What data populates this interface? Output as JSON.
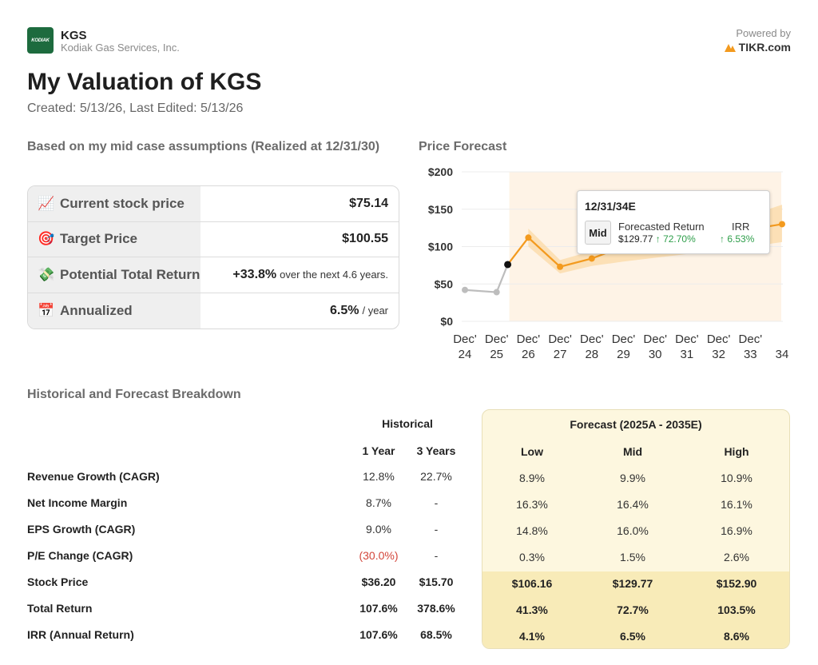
{
  "header": {
    "logo_text": "KODIAK",
    "ticker": "KGS",
    "company": "Kodiak Gas Services, Inc.",
    "powered_by": "Powered by",
    "brand": "TIKR.com",
    "title": "My Valuation of KGS",
    "subtitle": "Created: 5/13/26, Last Edited: 5/13/26"
  },
  "summary": {
    "section_title": "Based on my mid case assumptions (Realized at 12/31/30)",
    "rows": [
      {
        "icon": "chart-up-icon",
        "emoji": "📈",
        "label": "Current stock price",
        "value": "$75.14",
        "suffix": ""
      },
      {
        "icon": "target-icon",
        "emoji": "🎯",
        "label": "Target Price",
        "value": "$100.55",
        "suffix": ""
      },
      {
        "icon": "money-icon",
        "emoji": "💸",
        "label": "Potential Total Return",
        "value": "+33.8%",
        "suffix": "over the next 4.6 years."
      },
      {
        "icon": "calendar-icon",
        "emoji": "📅",
        "label": "Annualized",
        "value": "6.5%",
        "suffix": "/ year"
      }
    ]
  },
  "forecast_chart": {
    "section_title": "Price Forecast",
    "tooltip": {
      "date": "12/31/34E",
      "badge": "Mid",
      "col1_header": "Forecasted Return",
      "col2_header": "IRR",
      "price": "$129.77",
      "return": "↑ 72.70%",
      "irr": "↑ 6.53%"
    }
  },
  "chart_data": {
    "type": "line",
    "x": [
      "Dec' 24",
      "Dec' 25",
      "Dec' 26",
      "Dec' 27",
      "Dec' 28",
      "Dec' 29",
      "Dec' 30",
      "Dec' 31",
      "Dec' 32",
      "Dec' 33",
      "34"
    ],
    "x_tick_top": [
      "Dec'",
      "Dec'",
      "Dec'",
      "Dec'",
      "Dec'",
      "Dec'",
      "Dec'",
      "Dec'",
      "Dec'",
      "Dec'",
      ""
    ],
    "x_tick_bottom": [
      "24",
      "25",
      "26",
      "27",
      "28",
      "29",
      "30",
      "31",
      "32",
      "33",
      "34"
    ],
    "y_ticks": [
      "$200",
      "$150",
      "$100",
      "$50",
      "$0"
    ],
    "y_tick_values": [
      200,
      150,
      100,
      50,
      0
    ],
    "ylim": [
      0,
      200
    ],
    "series": [
      {
        "kind": "historical",
        "color": "#bdbdbd",
        "x": [
          0,
          1,
          1.35
        ],
        "y": [
          42,
          39,
          76
        ]
      },
      {
        "kind": "forecast",
        "color": "#f39a1e",
        "x": [
          1.35,
          2,
          3,
          4,
          4.5,
          10
        ],
        "y": [
          76,
          112,
          73,
          84,
          92,
          130
        ]
      }
    ],
    "band": {
      "x": [
        2,
        3,
        4,
        5,
        6,
        7,
        8,
        9,
        10
      ],
      "low": [
        100,
        64,
        74,
        80,
        85,
        90,
        95,
        100,
        106
      ],
      "high": [
        124,
        82,
        94,
        102,
        110,
        120,
        130,
        142,
        156
      ]
    },
    "current_point": {
      "x": 1.35,
      "y": 76
    },
    "forecast_region_start": 1.4,
    "grid": true,
    "colors": {
      "historical": "#bdbdbd",
      "forecast": "#f39a1e",
      "band": "#fbd9a6",
      "region": "#fef3e6",
      "current": "#111111"
    }
  },
  "breakdown": {
    "section_title": "Historical and Forecast Breakdown",
    "historical_header": "Historical",
    "forecast_header": "Forecast (2025A - 2035E)",
    "hist_cols": [
      "1 Year",
      "3 Years"
    ],
    "fc_cols": [
      "Low",
      "Mid",
      "High"
    ],
    "rows": [
      {
        "label": "Revenue Growth (CAGR)",
        "h1": "12.8%",
        "h3": "22.7%",
        "low": "8.9%",
        "mid": "9.9%",
        "high": "10.9%"
      },
      {
        "label": "Net Income Margin",
        "h1": "8.7%",
        "h3": "-",
        "low": "16.3%",
        "mid": "16.4%",
        "high": "16.1%"
      },
      {
        "label": "EPS Growth (CAGR)",
        "h1": "9.0%",
        "h3": "-",
        "low": "14.8%",
        "mid": "16.0%",
        "high": "16.9%"
      },
      {
        "label": "P/E Change (CAGR)",
        "h1": "(30.0%)",
        "h3": "-",
        "low": "0.3%",
        "mid": "1.5%",
        "high": "2.6%"
      },
      {
        "label": "Stock Price",
        "h1": "$36.20",
        "h3": "$15.70",
        "low": "$106.16",
        "mid": "$129.77",
        "high": "$152.90"
      },
      {
        "label": "Total Return",
        "h1": "107.6%",
        "h3": "378.6%",
        "low": "41.3%",
        "mid": "72.7%",
        "high": "103.5%"
      },
      {
        "label": "IRR (Annual Return)",
        "h1": "107.6%",
        "h3": "68.5%",
        "low": "4.1%",
        "mid": "6.5%",
        "high": "8.6%"
      }
    ]
  }
}
